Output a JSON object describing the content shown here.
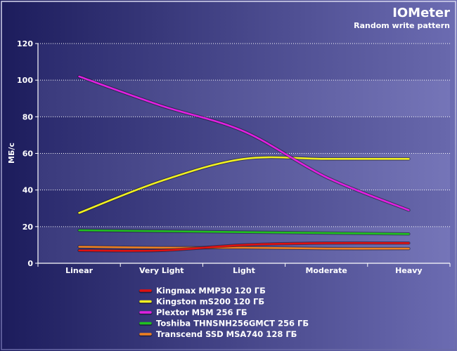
{
  "chart_data": {
    "type": "line",
    "title": "IOMeter",
    "subtitle": "Random write pattern",
    "ylabel": "МБ/с",
    "xlabel": "",
    "categories": [
      "Linear",
      "Very Light",
      "Light",
      "Moderate",
      "Heavy"
    ],
    "ylim": [
      0,
      120
    ],
    "yticks": [
      0,
      20,
      40,
      60,
      80,
      100,
      120
    ],
    "grid": true,
    "legend_position": "bottom",
    "series": [
      {
        "name": "Kingmax MMP30 120 ГБ",
        "color": "#e01010",
        "values": [
          7,
          7,
          10,
          11,
          11
        ]
      },
      {
        "name": "Kingston mS200 120 ГБ",
        "color": "#f0f020",
        "values": [
          27.5,
          45,
          57,
          57,
          57
        ]
      },
      {
        "name": "Plextor M5M 256 ГБ",
        "color": "#e020e0",
        "values": [
          102,
          86,
          72,
          47,
          29
        ]
      },
      {
        "name": "Toshiba THNSNH256GMCT 256 ГБ",
        "color": "#20c020",
        "values": [
          18,
          17.5,
          17,
          16.5,
          16
        ]
      },
      {
        "name": "Transcend SSD MSA740 128 ГБ",
        "color": "#f08020",
        "values": [
          9,
          8.5,
          8.5,
          8,
          8
        ]
      }
    ]
  }
}
